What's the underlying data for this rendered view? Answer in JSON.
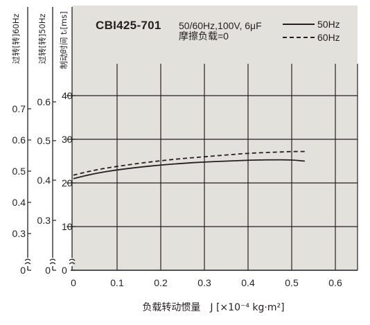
{
  "chart_data": {
    "type": "line",
    "title": "CBI425-701",
    "conditions": [
      "50/60Hz,100V, 6μF",
      "摩擦负载=0"
    ],
    "xlabel": "负载转动惯量　J [×10⁻⁴ kg·m²]",
    "xlim": [
      0,
      0.65
    ],
    "x_ticks": [
      "0",
      "0.1",
      "0.2",
      "0.3",
      "0.4",
      "0.5",
      "0.6"
    ],
    "axes": [
      {
        "label": "过转[转]60Hz",
        "ticks": [
          "0",
          "0.3",
          "0.4",
          "0.5",
          "0.6",
          "0.7"
        ]
      },
      {
        "label": "过转[转]50Hz",
        "ticks": [
          "0",
          "0.3",
          "0.4",
          "0.5",
          "0.6"
        ]
      },
      {
        "label": "制动时间 tᵣ[ms]",
        "ticks": [
          "0",
          "10",
          "20",
          "30",
          "40"
        ],
        "ylim": [
          0,
          50
        ]
      }
    ],
    "grid": true,
    "legend_position": "top-right",
    "series": [
      {
        "name": "50Hz",
        "style": "solid",
        "x": [
          0,
          0.05,
          0.1,
          0.15,
          0.2,
          0.25,
          0.3,
          0.35,
          0.4,
          0.45,
          0.5,
          0.53
        ],
        "y": [
          21.0,
          22.2,
          23.0,
          23.6,
          24.1,
          24.5,
          24.8,
          25.0,
          25.2,
          25.3,
          25.3,
          25.0
        ]
      },
      {
        "name": "60Hz",
        "style": "dashed",
        "x": [
          0,
          0.05,
          0.1,
          0.15,
          0.2,
          0.25,
          0.3,
          0.35,
          0.4,
          0.45,
          0.5,
          0.53
        ],
        "y": [
          21.8,
          23.0,
          23.8,
          24.5,
          25.1,
          25.6,
          26.0,
          26.4,
          26.8,
          27.0,
          27.2,
          27.2
        ]
      }
    ]
  }
}
